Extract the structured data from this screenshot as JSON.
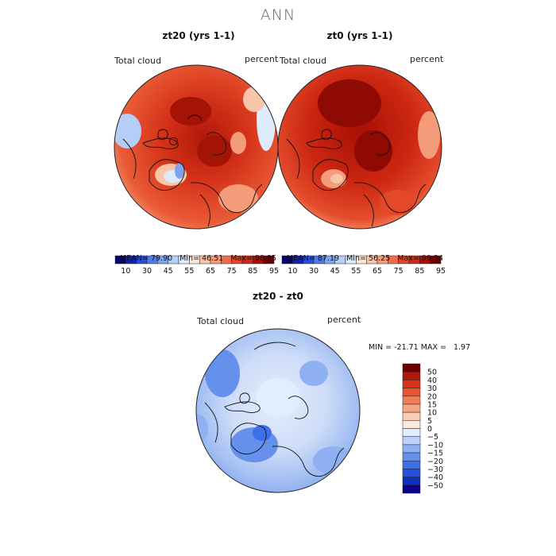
{
  "title": "ANN",
  "colors": {
    "abs_scale": [
      "#08006e",
      "#1424a8",
      "#2a4fd8",
      "#4f7be8",
      "#7fa3ef",
      "#b5cdf7",
      "#deebfb",
      "#fde5d6",
      "#f9c5a8",
      "#f49b79",
      "#ee6c4c",
      "#e4472a",
      "#cc2b14",
      "#a41406",
      "#6c0000"
    ],
    "diff_scale": [
      "#0a008c",
      "#1030c0",
      "#2550e0",
      "#3f6fe8",
      "#6590ec",
      "#8fb0f2",
      "#bcd2f8",
      "#e2edfd",
      "#fbe9df",
      "#f8cdb5",
      "#f4a783",
      "#ef7d57",
      "#e95431",
      "#d83218",
      "#b01808",
      "#6e0000"
    ]
  },
  "panels": [
    {
      "title": "zt20 (yrs 1-1)",
      "left_label": "Total cloud",
      "right_label": "percent",
      "stats": {
        "mean_label": "MEAN=",
        "mean": "79.90",
        "min_label": "Min=",
        "min": "46.51",
        "max_label": "Max=",
        "max": "98.35"
      }
    },
    {
      "title": "zt0 (yrs 1-1)",
      "left_label": "Total cloud",
      "right_label": "percent",
      "stats": {
        "mean_label": "MEAN=",
        "mean": "87.19",
        "min_label": "Min=",
        "min": "56.25",
        "max_label": "Max=",
        "max": "99.34"
      }
    }
  ],
  "abs_ticks": [
    "10",
    "30",
    "45",
    "55",
    "65",
    "75",
    "85",
    "95"
  ],
  "diff_panel": {
    "title": "zt20 - zt0",
    "left_label": "Total cloud",
    "right_label": "percent",
    "minmax": "MIN = -21.71 MAX =   1.97",
    "ticks": [
      "50",
      "40",
      "30",
      "20",
      "15",
      "10",
      "5",
      "0",
      "−5",
      "−10",
      "−15",
      "−20",
      "−30",
      "−40",
      "−50"
    ]
  }
}
